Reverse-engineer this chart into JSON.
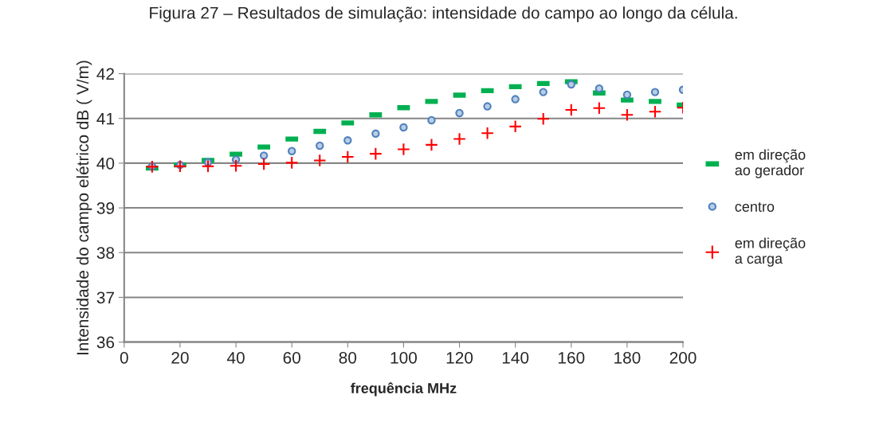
{
  "chart_data": {
    "type": "scatter",
    "title": "Figura 27 – Resultados de simulação: intensidade do campo ao longo da célula.",
    "xlabel": "frequência MHz",
    "ylabel": "Intensidade do campo elétrico dB ( V/m)",
    "x": [
      10,
      20,
      30,
      40,
      50,
      60,
      70,
      80,
      90,
      100,
      110,
      120,
      130,
      140,
      150,
      160,
      170,
      180,
      190,
      200
    ],
    "series": [
      {
        "name": "em direção\nao gerador",
        "color": "#00b050",
        "marker": "square",
        "values": [
          39.89,
          39.96,
          40.06,
          40.2,
          40.36,
          40.54,
          40.71,
          40.9,
          41.08,
          41.24,
          41.38,
          41.52,
          41.62,
          41.71,
          41.78,
          41.82,
          41.57,
          41.41,
          41.38,
          41.3
        ]
      },
      {
        "name": "centro",
        "color": "#4f81bd",
        "marker": "circle",
        "values": [
          39.93,
          39.96,
          40.02,
          40.08,
          40.17,
          40.27,
          40.39,
          40.51,
          40.66,
          40.8,
          40.96,
          41.12,
          41.27,
          41.43,
          41.59,
          41.76,
          41.67,
          41.53,
          41.59,
          41.64
        ]
      },
      {
        "name": "em direção\na carga",
        "color": "#ff0000",
        "marker": "cross",
        "values": [
          39.92,
          39.93,
          39.93,
          39.94,
          39.98,
          40.01,
          40.06,
          40.14,
          40.21,
          40.31,
          40.41,
          40.54,
          40.67,
          40.82,
          40.99,
          41.19,
          41.23,
          41.08,
          41.15,
          41.24
        ]
      }
    ],
    "xlim": [
      0,
      200
    ],
    "xticks": [
      0,
      20,
      40,
      60,
      80,
      100,
      120,
      140,
      160,
      180,
      200
    ],
    "ylim": [
      36,
      42
    ],
    "yticks": [
      36,
      37,
      38,
      39,
      40,
      41,
      42
    ],
    "grid": "y",
    "legend": "right"
  }
}
